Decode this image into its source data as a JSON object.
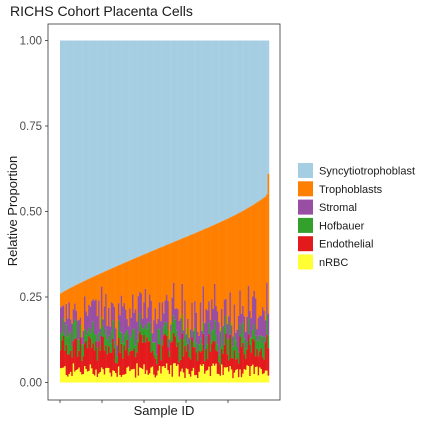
{
  "chart_data": {
    "type": "bar",
    "stacked": true,
    "title": "RICHS Cohort Placenta Cells",
    "xlabel": "Sample ID",
    "ylabel": "Relative Proportion",
    "ylim": [
      0,
      1
    ],
    "y_ticks": [
      "0.00",
      "0.25",
      "0.50",
      "0.75",
      "1.00"
    ],
    "n_samples": 148,
    "sorted_by": "Syncytiotrophoblast descending",
    "legend_position": "right",
    "grid": false,
    "series": [
      {
        "name": "Syncytiotrophoblast",
        "color": "#a6cee3"
      },
      {
        "name": "Trophoblasts",
        "color": "#ff7f00"
      },
      {
        "name": "Stromal",
        "color": "#984ea3"
      },
      {
        "name": "Hofbauer",
        "color": "#33a02c"
      },
      {
        "name": "Endothelial",
        "color": "#e31a1c"
      },
      {
        "name": "nRBC",
        "color": "#ffff33"
      }
    ],
    "non_syncytiotrophoblast_total_range": [
      0.26,
      0.61
    ],
    "summary": {
      "trophoblasts_top_range": [
        0.26,
        0.61
      ],
      "stromal_top_approx": [
        0.1,
        0.28
      ],
      "hofbauer_top_approx": [
        0.13,
        0.2
      ],
      "endothelial_top_approx": [
        0.05,
        0.14
      ],
      "nrbc_top_approx": [
        0.0,
        0.06
      ]
    }
  }
}
